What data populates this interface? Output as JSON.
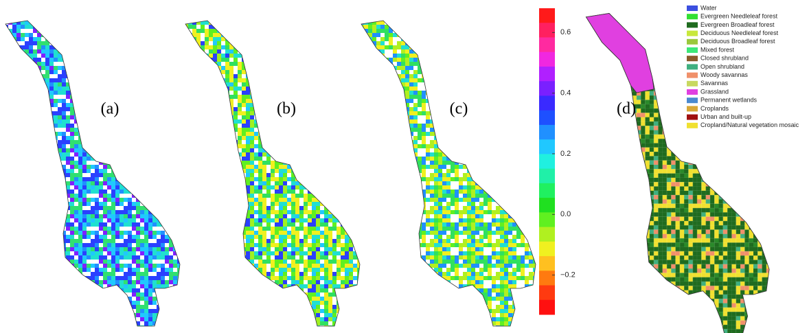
{
  "panels": [
    {
      "label": "(a)"
    },
    {
      "label": "(b)"
    },
    {
      "label": "(c)"
    },
    {
      "label": "(d)"
    }
  ],
  "colorbar": {
    "lim": [
      -0.33,
      0.68
    ],
    "ticks": [
      0.6,
      0.4,
      0.2,
      {
        "value": 0,
        "label": "0.0"
      },
      {
        "value": -0.2,
        "label": "−0.2"
      }
    ],
    "colors": [
      "#ff1a1a",
      "#ff2060",
      "#ff2aa0",
      "#f028e0",
      "#b020ff",
      "#7a20ff",
      "#3a2aff",
      "#1e50ff",
      "#2090ff",
      "#20c8ff",
      "#20f0e0",
      "#20f0a8",
      "#20f060",
      "#20e020",
      "#60f020",
      "#b0f020",
      "#f0f020",
      "#ffc020",
      "#ff7a10",
      "#ff3a10",
      "#ff1010"
    ]
  },
  "legend": {
    "items": [
      {
        "name": "Water",
        "color": "#3b4fe0"
      },
      {
        "name": "Evergreen Needleleaf forest",
        "color": "#33e033"
      },
      {
        "name": "Evergreen Broadleaf forest",
        "color": "#1f6b1f"
      },
      {
        "name": "Deciduous Needleleaf forest",
        "color": "#c8e83c"
      },
      {
        "name": "Deciduous Broadleaf forest",
        "color": "#9ac83c"
      },
      {
        "name": "Mixed forest",
        "color": "#3ce878"
      },
      {
        "name": "Closed shrubland",
        "color": "#8b5a2b"
      },
      {
        "name": "Open shrubland",
        "color": "#40b080"
      },
      {
        "name": "Woody savannas",
        "color": "#f0906a"
      },
      {
        "name": "Savannas",
        "color": "#c8d860"
      },
      {
        "name": "Grassland",
        "color": "#e040e0"
      },
      {
        "name": "Permanent wetlands",
        "color": "#4a8ad0"
      },
      {
        "name": "Croplands",
        "color": "#d8a838"
      },
      {
        "name": "Urban and built-up",
        "color": "#a01010"
      },
      {
        "name": "Cropland/Natural vegetation mosaic",
        "color": "#f0e030"
      }
    ]
  }
}
